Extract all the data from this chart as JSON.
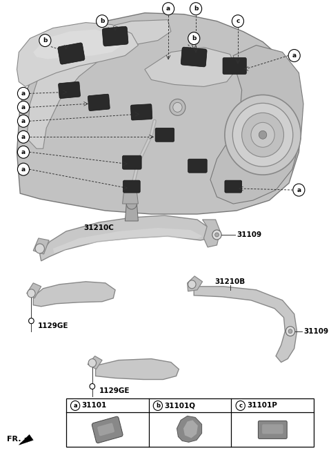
{
  "bg_color": "#ffffff",
  "tank_body_color": "#c8c8c8",
  "strap_color": "#b8b8b8",
  "pad_color": "#444444",
  "text_color": "#000000",
  "line_color": "#555555",
  "part_headers": [
    [
      "a",
      "31101"
    ],
    [
      "b",
      "31101Q"
    ],
    [
      "c",
      "31101P"
    ]
  ],
  "strap_c_label": "31210C",
  "strap_b_label": "31210B",
  "bolt_label": "31109",
  "screw_label": "1129GE",
  "fr_label": "FR."
}
